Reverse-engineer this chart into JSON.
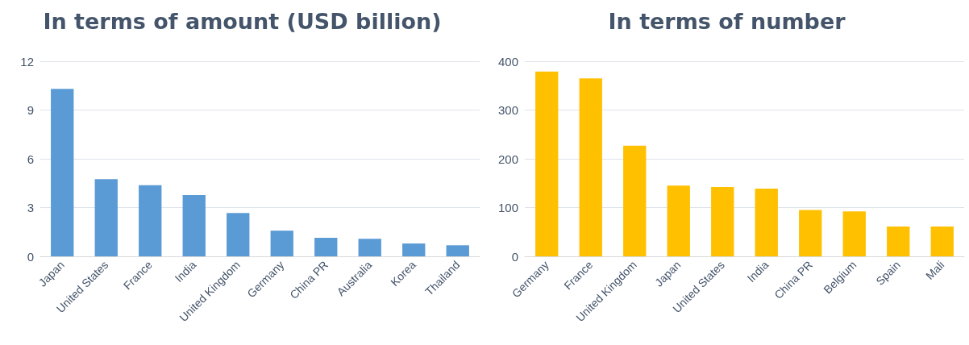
{
  "chart_data": [
    {
      "type": "bar",
      "title": "In terms of amount (USD billion)",
      "categories": [
        "Japan",
        "United States",
        "France",
        "India",
        "United Kingdom",
        "Germany",
        "China PR",
        "Australia",
        "Korea",
        "Thailand"
      ],
      "values": [
        10.3,
        4.75,
        4.37,
        3.77,
        2.67,
        1.58,
        1.14,
        1.08,
        0.79,
        0.68
      ],
      "color": "#5b9bd5",
      "ylim": [
        0,
        12
      ],
      "yticks": [
        0,
        3,
        6,
        9,
        12
      ],
      "grid": "y"
    },
    {
      "type": "bar",
      "title": "In terms of number",
      "categories": [
        "Germany",
        "France",
        "United Kingdom",
        "Japan",
        "United States",
        "India",
        "China PR",
        "Belgium",
        "Spain",
        "Mali"
      ],
      "values": [
        379,
        365,
        227,
        145,
        142,
        139,
        95,
        92,
        61,
        61
      ],
      "color": "#ffc000",
      "ylim": [
        0,
        400
      ],
      "yticks": [
        0,
        100,
        200,
        300,
        400
      ],
      "grid": "y"
    }
  ]
}
